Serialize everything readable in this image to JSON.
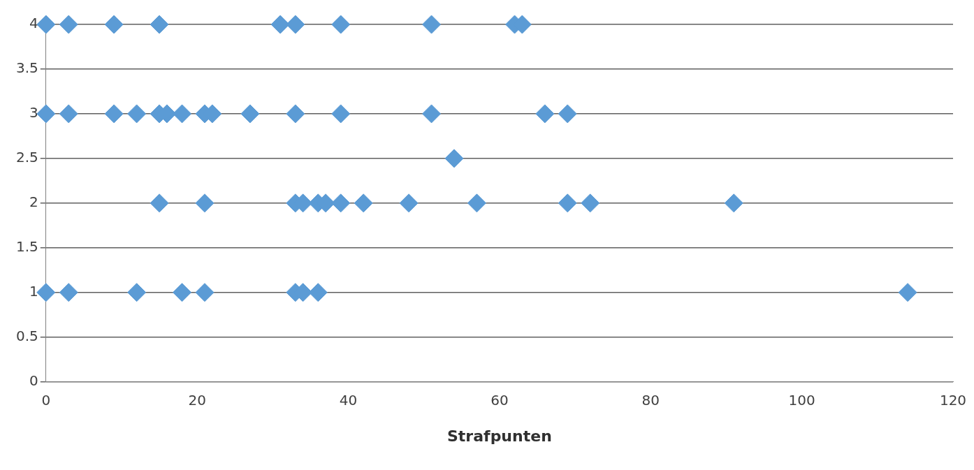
{
  "chart_data": {
    "type": "scatter",
    "xlabel": "Strafpunten",
    "series": [
      {
        "color": "#5b9bd5",
        "x": [
          0,
          3,
          9,
          15,
          31,
          33,
          39,
          51,
          62,
          63
        ],
        "values": [
          4,
          4,
          4,
          4,
          4,
          4,
          4,
          4,
          4,
          4
        ]
      },
      {
        "color": "#5b9bd5",
        "x": [
          0,
          3,
          9,
          12,
          15,
          16,
          18,
          21,
          22,
          27,
          33,
          39,
          51,
          66,
          69
        ],
        "values": [
          3,
          3,
          3,
          3,
          3,
          3,
          3,
          3,
          3,
          3,
          3,
          3,
          3,
          3,
          3
        ]
      },
      {
        "color": "#5b9bd5",
        "x": [
          54
        ],
        "values": [
          2.5
        ]
      },
      {
        "color": "#5b9bd5",
        "x": [
          15,
          21,
          33,
          34,
          36,
          37,
          39,
          42,
          48,
          57,
          69,
          72,
          91
        ],
        "values": [
          2,
          2,
          2,
          2,
          2,
          2,
          2,
          2,
          2,
          2,
          2,
          2,
          2
        ]
      },
      {
        "color": "#5b9bd5",
        "x": [
          0,
          3,
          12,
          18,
          21,
          33,
          34,
          36,
          114
        ],
        "values": [
          1,
          1,
          1,
          1,
          1,
          1,
          1,
          1,
          1
        ]
      }
    ],
    "xlim": [
      0,
      120
    ],
    "xticks": [
      0,
      20,
      40,
      60,
      80,
      100,
      120
    ],
    "ylim": [
      0,
      4
    ],
    "yticks": [
      0,
      0.5,
      1,
      1.5,
      2,
      2.5,
      3,
      3.5,
      4
    ],
    "grid": "y",
    "marker": "diamond",
    "legend": false
  }
}
